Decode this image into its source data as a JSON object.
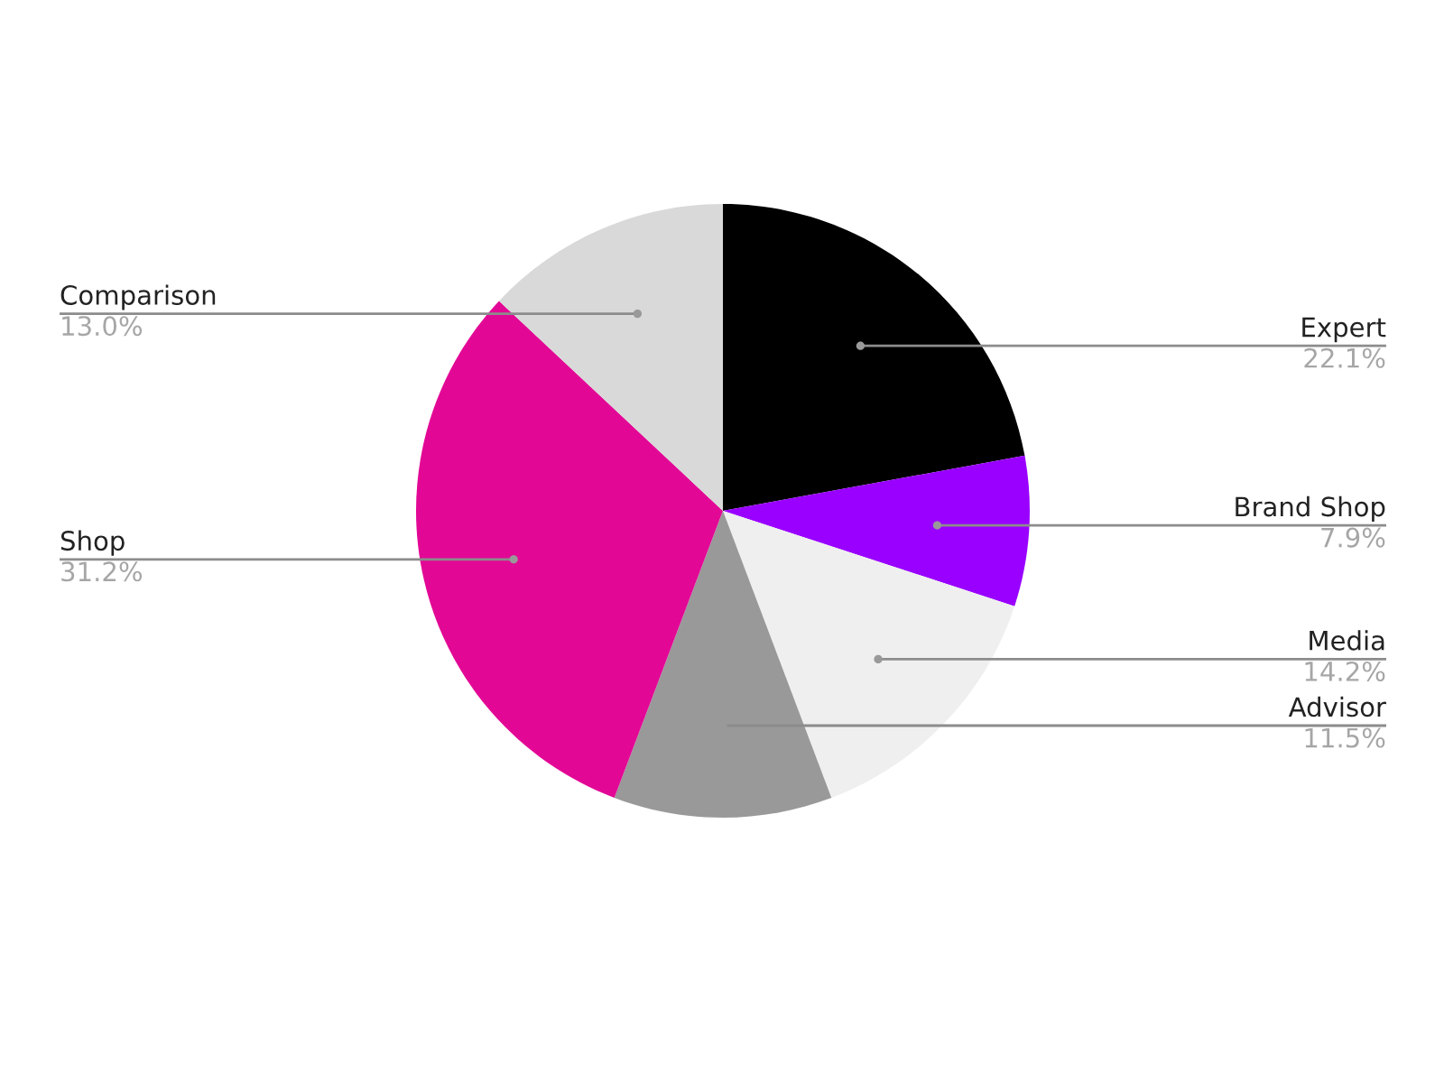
{
  "chart_data": {
    "type": "pie",
    "categories": [
      "Expert",
      "Brand Shop",
      "Media",
      "Advisor",
      "Shop",
      "Comparison"
    ],
    "values": [
      22.1,
      7.9,
      14.2,
      11.5,
      31.2,
      13.0
    ],
    "colors": [
      "#000000",
      "#9900ff",
      "#efefef",
      "#999999",
      "#e20895",
      "#d9d9d9"
    ],
    "value_labels": [
      "22.1%",
      "7.9%",
      "14.2%",
      "11.5%",
      "31.2%",
      "13.0%"
    ]
  }
}
